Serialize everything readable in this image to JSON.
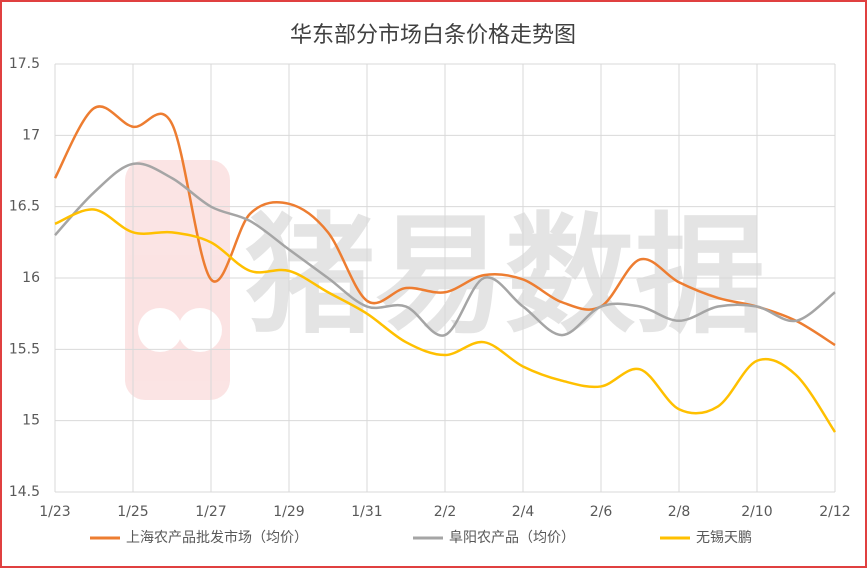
{
  "chart_data": {
    "type": "line",
    "title": "华东部分市场白条价格走势图",
    "watermark": "猪易数据",
    "categories": [
      "1/23",
      null,
      "1/25",
      null,
      "1/27",
      null,
      "1/29",
      null,
      "1/31",
      null,
      "2/2",
      null,
      "2/4",
      null,
      "2/6",
      null,
      "2/8",
      null,
      "2/10",
      null,
      "2/12"
    ],
    "series": [
      {
        "name": "上海农产品批发市场（均价）",
        "color": "#ED7D31",
        "values": [
          16.7,
          17.19,
          17.06,
          17.08,
          15.99,
          16.45,
          16.52,
          16.32,
          15.84,
          15.93,
          15.9,
          16.02,
          15.99,
          15.83,
          15.8,
          16.13,
          15.97,
          15.86,
          15.8,
          15.7,
          15.53
        ]
      },
      {
        "name": "阜阳农产品（均价）",
        "color": "#A5A5A5",
        "values": [
          16.3,
          16.6,
          16.8,
          16.7,
          16.5,
          16.4,
          16.2,
          16.0,
          15.8,
          15.8,
          15.6,
          16.0,
          15.8,
          15.6,
          15.8,
          15.8,
          15.7,
          15.8,
          15.8,
          15.7,
          15.9
        ]
      },
      {
        "name": "无锡天鹏",
        "color": "#FFC000",
        "values": [
          16.38,
          16.48,
          16.32,
          16.32,
          16.25,
          16.05,
          16.05,
          15.9,
          15.75,
          15.55,
          15.46,
          15.55,
          15.38,
          15.28,
          15.24,
          15.36,
          15.08,
          15.1,
          15.42,
          15.32,
          14.92
        ]
      }
    ],
    "ylim": [
      14.5,
      17.5
    ],
    "yticks": [
      14.5,
      15,
      15.5,
      16,
      16.5,
      17,
      17.5
    ],
    "grid": true,
    "legend": "bottom"
  }
}
